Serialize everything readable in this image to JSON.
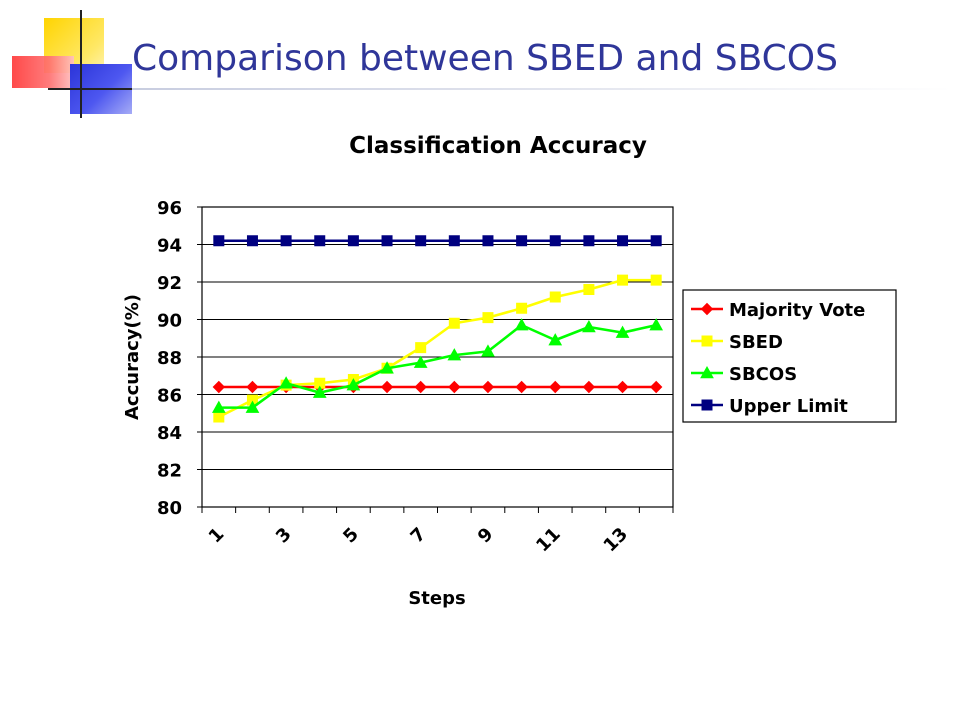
{
  "slide": {
    "title": "Comparison between SBED and SBCOS"
  },
  "chart_data": {
    "type": "line",
    "title": "Classification Accuracy",
    "xlabel": "Steps",
    "ylabel": "Accuracy(%)",
    "ylim": [
      80,
      96
    ],
    "yticks": [
      "80",
      "82",
      "84",
      "86",
      "88",
      "90",
      "92",
      "94",
      "96"
    ],
    "x": [
      1,
      2,
      3,
      4,
      5,
      6,
      7,
      8,
      9,
      10,
      11,
      12,
      13,
      14
    ],
    "xtick_labels": [
      "1",
      "3",
      "5",
      "7",
      "9",
      "11",
      "13"
    ],
    "grid": "horizontal",
    "legend_position": "right",
    "series": [
      {
        "name": "Majority Vote",
        "color": "#ff0000",
        "marker": "diamond",
        "values": [
          86.4,
          86.4,
          86.4,
          86.4,
          86.4,
          86.4,
          86.4,
          86.4,
          86.4,
          86.4,
          86.4,
          86.4,
          86.4,
          86.4
        ]
      },
      {
        "name": "SBED",
        "color": "#ffff00",
        "marker": "square",
        "values": [
          84.8,
          85.7,
          86.5,
          86.6,
          86.8,
          87.4,
          88.5,
          89.8,
          90.1,
          90.6,
          91.2,
          91.6,
          92.1,
          92.1
        ]
      },
      {
        "name": "SBCOS",
        "color": "#00ff00",
        "marker": "triangle",
        "values": [
          85.3,
          85.3,
          86.6,
          86.1,
          86.5,
          87.4,
          87.7,
          88.1,
          88.3,
          89.7,
          88.9,
          89.6,
          89.3,
          89.7
        ]
      },
      {
        "name": "Upper Limit",
        "color": "#000080",
        "marker": "square",
        "values": [
          94.2,
          94.2,
          94.2,
          94.2,
          94.2,
          94.2,
          94.2,
          94.2,
          94.2,
          94.2,
          94.2,
          94.2,
          94.2,
          94.2
        ]
      }
    ]
  }
}
